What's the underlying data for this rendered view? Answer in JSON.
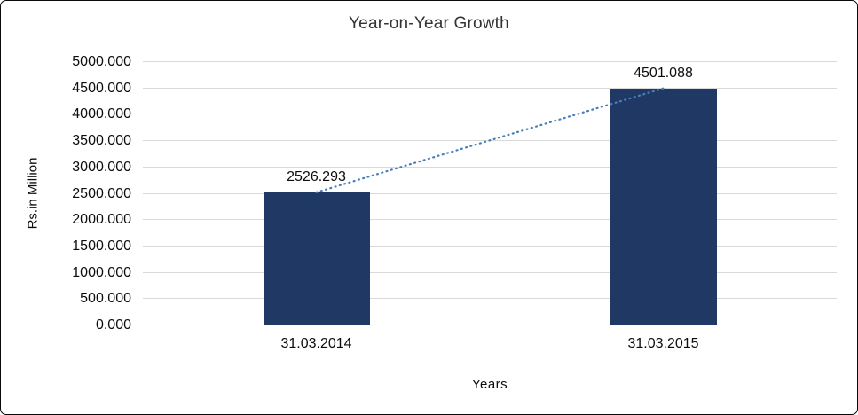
{
  "chart_data": {
    "type": "bar",
    "title": "Year-on-Year Growth",
    "xlabel": "Years",
    "ylabel": "Rs.in Million",
    "categories": [
      "31.03.2014",
      "31.03.2015"
    ],
    "values": [
      2526.293,
      4501.088
    ],
    "data_labels": [
      "2526.293",
      "4501.088"
    ],
    "ylim": [
      0,
      5000
    ],
    "ytick_step": 500,
    "ytick_labels": [
      "0.000",
      "500.000",
      "1000.000",
      "1500.000",
      "2000.000",
      "2500.000",
      "3000.000",
      "3500.000",
      "4000.000",
      "4500.000",
      "5000.000"
    ],
    "grid": true,
    "legend": "none",
    "bar_color": "#1f3864",
    "trendline_color": "#4a7ebb",
    "trendline_style": "dotted",
    "gridline_color": "#d9d9d9",
    "baseline_color": "#bfbfbf"
  }
}
